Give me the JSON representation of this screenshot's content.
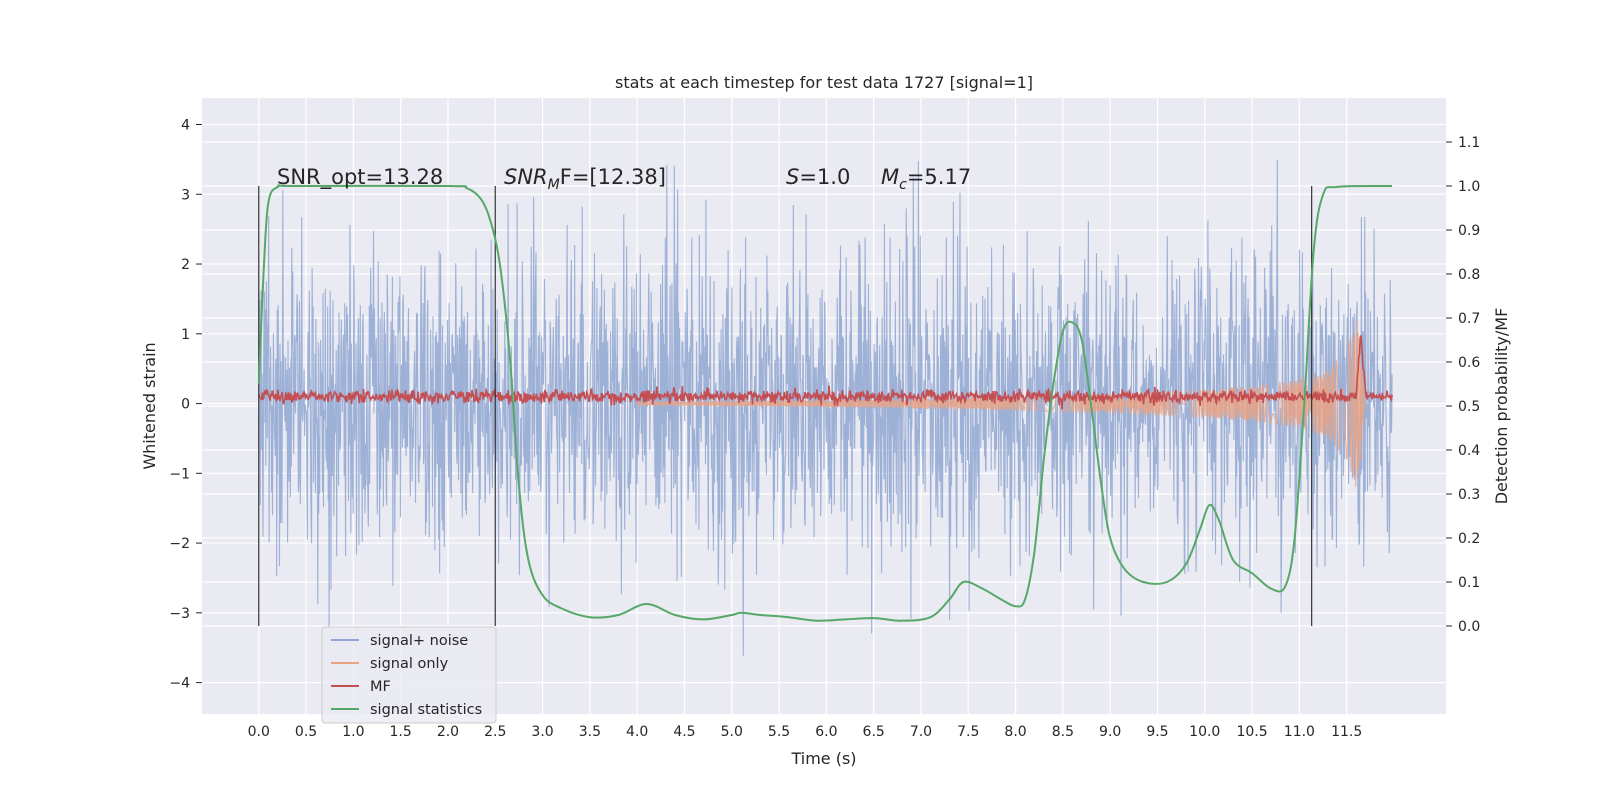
{
  "chart_data": {
    "type": "line",
    "title": "stats at each timestep for test data 1727 [signal=1]",
    "xlabel": "Time (s)",
    "ylabel": "Whitened strain",
    "ylabel_right": "Detection probability/MF",
    "xlim": [
      -0.6,
      12.55
    ],
    "ylim": [
      -4.45,
      4.38
    ],
    "ylim_right": [
      -0.2,
      1.2
    ],
    "x_ticks": [
      "0.0",
      "0.5",
      "1.0",
      "1.5",
      "2.0",
      "2.5",
      "3.0",
      "3.5",
      "4.0",
      "4.5",
      "5.0",
      "5.5",
      "6.0",
      "6.5",
      "7.0",
      "7.5",
      "8.0",
      "8.5",
      "9.0",
      "9.5",
      "10.0",
      "10.5",
      "11.0",
      "11.5"
    ],
    "y_ticks": [
      4,
      3,
      2,
      1,
      0,
      -1,
      -2,
      -3,
      -4
    ],
    "y_tick_labels": [
      "4",
      "3",
      "2",
      "1",
      "0",
      "−1",
      "−2",
      "−3",
      "−4"
    ],
    "y_right_ticks": [
      "1.1",
      "1.0",
      "0.9",
      "0.8",
      "0.7",
      "0.6",
      "0.5",
      "0.4",
      "0.3",
      "0.2",
      "0.1",
      "0.0"
    ],
    "grid": true,
    "legend_position": "bottom-left",
    "annotations": {
      "snr_opt": "SNR_opt=13.28",
      "snr_mf_sym": "SNR",
      "snr_mf_sub": "M",
      "snr_mf_rest": "F=[12.38]",
      "s_sym": "S",
      "s_rest": "=1.0",
      "mc_sym": "M",
      "mc_sub": "c",
      "mc_rest": "=5.17"
    },
    "vlines_x": [
      0.0,
      2.5,
      11.13
    ],
    "series": [
      {
        "name": "signal+ noise",
        "color": "#8fa6d1",
        "kind": "noise",
        "x_range": [
          0.0,
          11.98
        ],
        "typical_abs": 1.2,
        "max_abs": 3.9
      },
      {
        "name": "signal only",
        "color": "#e8a386",
        "kind": "chirp",
        "x_range": [
          4.0,
          11.69
        ],
        "envelope": [
          [
            4.0,
            0.02
          ],
          [
            6.0,
            0.05
          ],
          [
            8.0,
            0.1
          ],
          [
            9.0,
            0.14
          ],
          [
            10.0,
            0.2
          ],
          [
            10.5,
            0.25
          ],
          [
            11.0,
            0.35
          ],
          [
            11.3,
            0.5
          ],
          [
            11.5,
            0.8
          ],
          [
            11.62,
            1.3
          ],
          [
            11.69,
            0.1
          ]
        ]
      },
      {
        "name": "MF",
        "color": "#c44e52",
        "kind": "mf",
        "x_range": [
          0.0,
          11.98
        ],
        "center": 0.1,
        "noise_amp": 0.08,
        "peak": {
          "x": 11.65,
          "y": 1.0
        }
      },
      {
        "name": "signal statistics",
        "color": "#55a868",
        "kind": "stat",
        "axis": "right",
        "points": [
          [
            0.0,
            0.55
          ],
          [
            0.05,
            0.8
          ],
          [
            0.1,
            0.96
          ],
          [
            0.2,
            0.998
          ],
          [
            0.4,
            1.0
          ],
          [
            2.0,
            1.0
          ],
          [
            2.2,
            0.995
          ],
          [
            2.35,
            0.97
          ],
          [
            2.45,
            0.92
          ],
          [
            2.55,
            0.82
          ],
          [
            2.65,
            0.62
          ],
          [
            2.75,
            0.32
          ],
          [
            2.85,
            0.15
          ],
          [
            3.0,
            0.07
          ],
          [
            3.2,
            0.04
          ],
          [
            3.5,
            0.02
          ],
          [
            3.8,
            0.025
          ],
          [
            4.1,
            0.05
          ],
          [
            4.4,
            0.025
          ],
          [
            4.7,
            0.015
          ],
          [
            5.0,
            0.025
          ],
          [
            5.1,
            0.03
          ],
          [
            5.3,
            0.025
          ],
          [
            5.6,
            0.02
          ],
          [
            5.9,
            0.012
          ],
          [
            6.2,
            0.015
          ],
          [
            6.5,
            0.018
          ],
          [
            6.8,
            0.012
          ],
          [
            7.1,
            0.02
          ],
          [
            7.3,
            0.06
          ],
          [
            7.45,
            0.1
          ],
          [
            7.65,
            0.085
          ],
          [
            7.85,
            0.06
          ],
          [
            8.0,
            0.045
          ],
          [
            8.1,
            0.06
          ],
          [
            8.2,
            0.17
          ],
          [
            8.3,
            0.38
          ],
          [
            8.4,
            0.55
          ],
          [
            8.5,
            0.67
          ],
          [
            8.6,
            0.69
          ],
          [
            8.7,
            0.65
          ],
          [
            8.8,
            0.5
          ],
          [
            8.9,
            0.33
          ],
          [
            9.0,
            0.2
          ],
          [
            9.15,
            0.13
          ],
          [
            9.35,
            0.1
          ],
          [
            9.6,
            0.1
          ],
          [
            9.8,
            0.14
          ],
          [
            9.95,
            0.22
          ],
          [
            10.05,
            0.275
          ],
          [
            10.15,
            0.24
          ],
          [
            10.3,
            0.15
          ],
          [
            10.5,
            0.12
          ],
          [
            10.7,
            0.085
          ],
          [
            10.85,
            0.09
          ],
          [
            10.95,
            0.2
          ],
          [
            11.05,
            0.5
          ],
          [
            11.15,
            0.85
          ],
          [
            11.25,
            0.98
          ],
          [
            11.4,
            0.998
          ],
          [
            11.98,
            1.0
          ]
        ]
      }
    ]
  }
}
